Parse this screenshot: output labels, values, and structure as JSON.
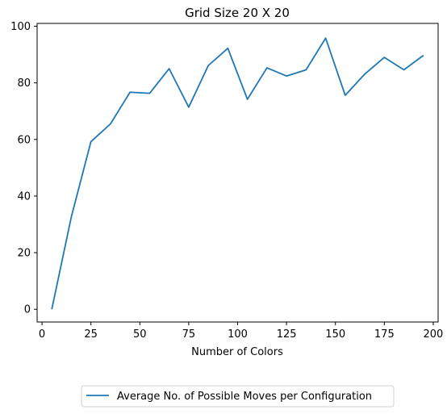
{
  "chart_data": {
    "type": "line",
    "title": "Grid Size 20 X 20",
    "xlabel": "Number of Colors",
    "ylabel": "",
    "xlim": [
      -2.5,
      202.5
    ],
    "ylim": [
      -4.5,
      101
    ],
    "xticks": [
      0,
      25,
      50,
      75,
      100,
      125,
      150,
      175,
      200
    ],
    "yticks": [
      0,
      20,
      40,
      60,
      80,
      100
    ],
    "grid": false,
    "legend_position": "below the plot",
    "series": [
      {
        "name": "Average No. of Possible Moves per Configuration",
        "color": "#1f77b4",
        "x": [
          5,
          15,
          25,
          35,
          45,
          55,
          65,
          75,
          85,
          95,
          105,
          115,
          125,
          135,
          145,
          155,
          165,
          175,
          185,
          195
        ],
        "y": [
          0,
          32.7,
          59.2,
          65.5,
          76.7,
          76.3,
          85.0,
          71.4,
          86.1,
          92.2,
          74.2,
          85.3,
          82.4,
          84.6,
          95.8,
          75.6,
          83.1,
          89.0,
          84.6,
          89.7
        ]
      }
    ]
  }
}
